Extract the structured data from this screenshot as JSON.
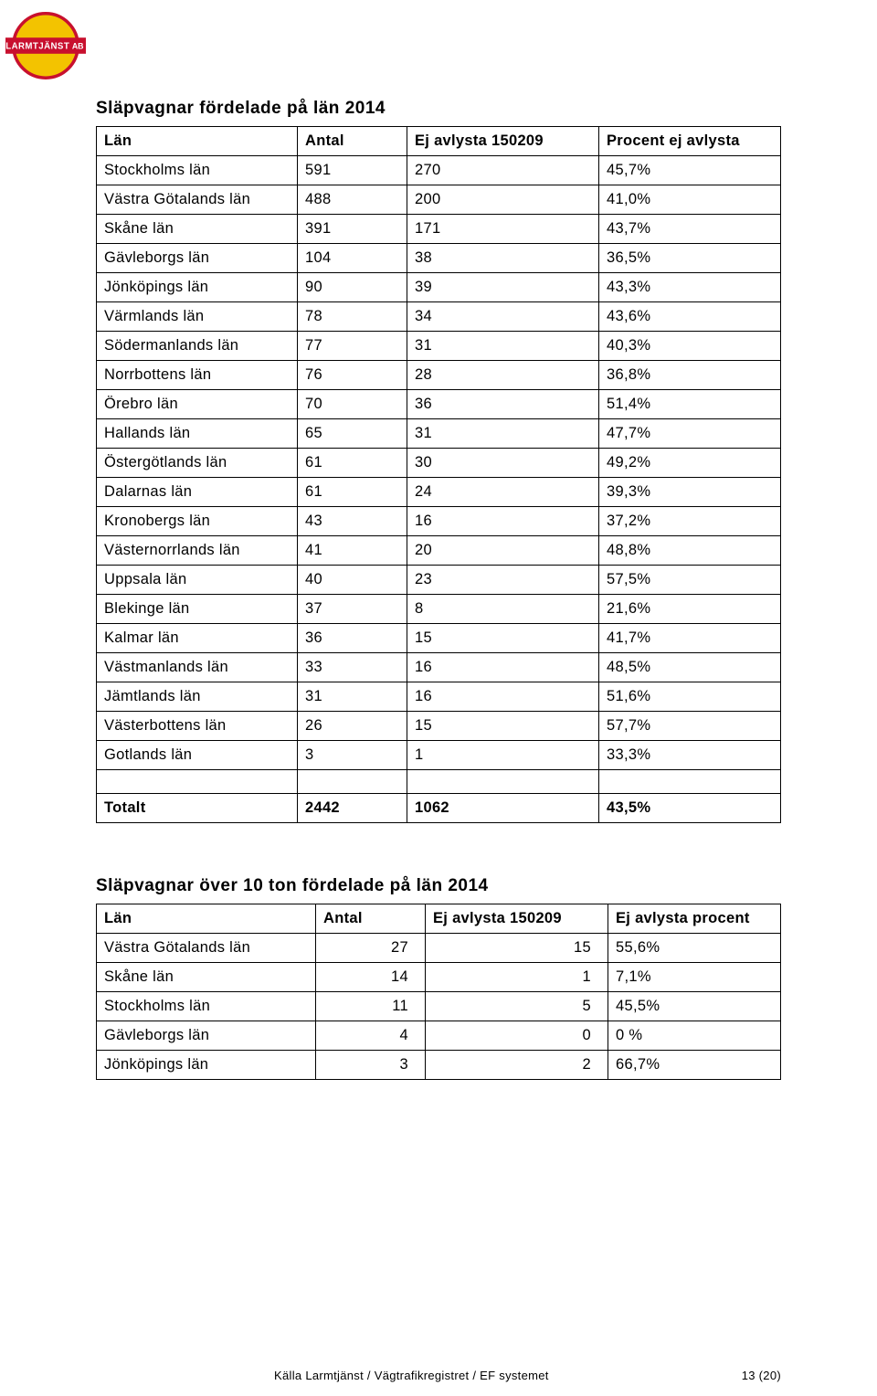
{
  "logo": {
    "top_text": "LARMTJÄNST",
    "right_text": "AB",
    "band_color": "#c8102e",
    "circle_fill": "#f3c300",
    "circle_stroke": "#c8102e"
  },
  "table1": {
    "title": "Släpvagnar fördelade på län 2014",
    "columns": [
      "Län",
      "Antal",
      "Ej avlysta 150209",
      "Procent ej avlysta"
    ],
    "rows": [
      [
        "Stockholms län",
        "591",
        "270",
        "45,7%"
      ],
      [
        "Västra Götalands län",
        "488",
        "200",
        "41,0%"
      ],
      [
        "Skåne län",
        "391",
        "171",
        "43,7%"
      ],
      [
        "Gävleborgs län",
        "104",
        "38",
        "36,5%"
      ],
      [
        "Jönköpings län",
        "90",
        "39",
        "43,3%"
      ],
      [
        "Värmlands län",
        "78",
        "34",
        "43,6%"
      ],
      [
        "Södermanlands län",
        "77",
        "31",
        "40,3%"
      ],
      [
        "Norrbottens län",
        "76",
        "28",
        "36,8%"
      ],
      [
        "Örebro län",
        "70",
        "36",
        "51,4%"
      ],
      [
        "Hallands län",
        "65",
        "31",
        "47,7%"
      ],
      [
        "Östergötlands län",
        "61",
        "30",
        "49,2%"
      ],
      [
        "Dalarnas län",
        "61",
        "24",
        "39,3%"
      ],
      [
        "Kronobergs län",
        "43",
        "16",
        "37,2%"
      ],
      [
        "Västernorrlands län",
        "41",
        "20",
        "48,8%"
      ],
      [
        "Uppsala län",
        "40",
        "23",
        "57,5%"
      ],
      [
        "Blekinge län",
        "37",
        "8",
        "21,6%"
      ],
      [
        "Kalmar län",
        "36",
        "15",
        "41,7%"
      ],
      [
        "Västmanlands län",
        "33",
        "16",
        "48,5%"
      ],
      [
        "Jämtlands län",
        "31",
        "16",
        "51,6%"
      ],
      [
        "Västerbottens län",
        "26",
        "15",
        "57,7%"
      ],
      [
        "Gotlands län",
        "3",
        "1",
        "33,3%"
      ]
    ],
    "total": [
      "Totalt",
      "2442",
      "1062",
      "43,5%"
    ]
  },
  "table2": {
    "title": "Släpvagnar över 10 ton fördelade på län 2014",
    "columns": [
      "Län",
      "Antal",
      "Ej avlysta 150209",
      "Ej avlysta procent"
    ],
    "rows": [
      [
        "Västra Götalands län",
        "27",
        "15",
        "55,6%"
      ],
      [
        "Skåne län",
        "14",
        "1",
        "7,1%"
      ],
      [
        "Stockholms län",
        "11",
        "5",
        "45,5%"
      ],
      [
        "Gävleborgs län",
        "4",
        "0",
        "0 %"
      ],
      [
        "Jönköpings län",
        "3",
        "2",
        "66,7%"
      ]
    ]
  },
  "footer": {
    "source": "Källa Larmtjänst / Vägtrafikregistret / EF systemet",
    "page": "13 (20)"
  }
}
